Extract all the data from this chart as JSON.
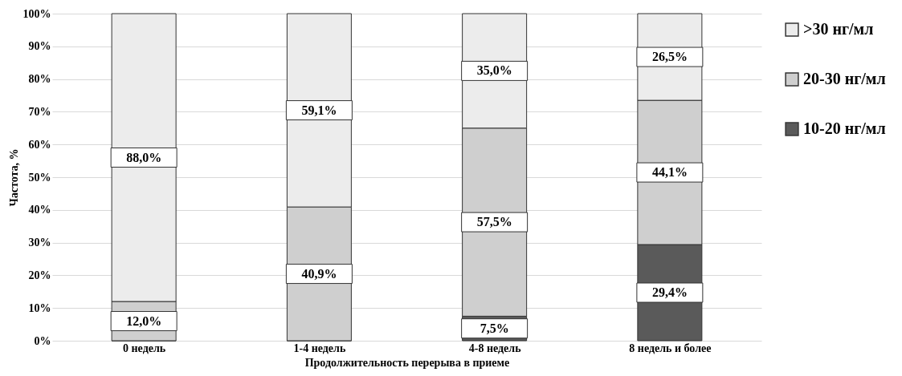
{
  "chart_data": {
    "type": "bar",
    "stacked": true,
    "xlabel": "Продолжительность перерыва в приеме",
    "ylabel": "Частота, %",
    "categories": [
      "0 недель",
      "1-4 недель",
      "4-8 недель",
      "8 недель и более"
    ],
    "series": [
      {
        "name": "10-20 нг/мл",
        "color": "#5a5a5a",
        "values": [
          0,
          0,
          7.5,
          29.4
        ],
        "value_labels": [
          null,
          null,
          "7,5%",
          "29,4%"
        ]
      },
      {
        "name": "20-30 нг/мл",
        "color": "#cfcfcf",
        "values": [
          12.0,
          40.9,
          57.5,
          44.1
        ],
        "value_labels": [
          "12,0%",
          "40,9%",
          "57,5%",
          "44,1%"
        ]
      },
      {
        "name": ">30 нг/мл",
        "color": "#ececec",
        "values": [
          88.0,
          59.1,
          35.0,
          26.5
        ],
        "value_labels": [
          "88,0%",
          "59,1%",
          "35,0%",
          "26,5%"
        ]
      }
    ],
    "ylim": [
      0,
      100
    ],
    "yticks": [
      {
        "value": 0,
        "label": "0%"
      },
      {
        "value": 10,
        "label": "10%"
      },
      {
        "value": 20,
        "label": "20%"
      },
      {
        "value": 30,
        "label": "30%"
      },
      {
        "value": 40,
        "label": "40%"
      },
      {
        "value": 50,
        "label": "50%"
      },
      {
        "value": 60,
        "label": "60%"
      },
      {
        "value": 70,
        "label": "70%"
      },
      {
        "value": 80,
        "label": "80%"
      },
      {
        "value": 90,
        "label": "90%"
      },
      {
        "value": 100,
        "label": "100%"
      }
    ],
    "grid": "y",
    "legend": "right"
  }
}
